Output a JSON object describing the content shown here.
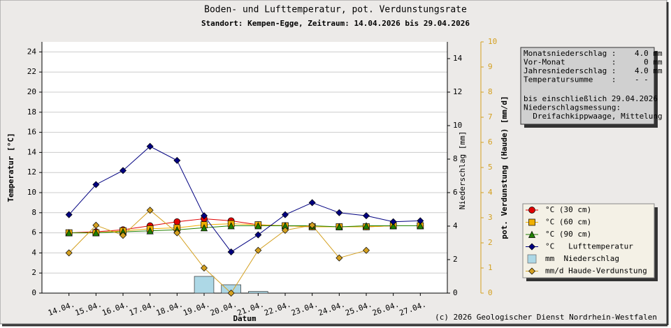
{
  "chart_data": {
    "type": "line",
    "title": "Boden- und Lufttemperatur, pot. Verdunstungsrate",
    "subtitle": "Standort: Kempen-Egge, Zeitraum: 14.04.2026 bis 29.04.2026",
    "x_label": "Datum",
    "y_label": "Temperatur [°C]",
    "y2_label": "Niederschlag [mm]",
    "y3_label": "pot. Verdunstung (Haude) [mm/d]",
    "categories": [
      "14.04.",
      "15.04.",
      "16.04.",
      "17.04.",
      "18.04.",
      "19.04.",
      "20.04.",
      "21.04.",
      "22.04.",
      "23.04.",
      "24.04.",
      "25.04.",
      "26.04.",
      "27.04."
    ],
    "ylim": [
      0,
      25
    ],
    "yticks": [
      0,
      2,
      4,
      6,
      8,
      10,
      12,
      14,
      16,
      18,
      20,
      22,
      24
    ],
    "y2lim": [
      0,
      15
    ],
    "y2ticks": [
      0,
      2,
      4,
      6,
      8,
      10,
      12,
      14
    ],
    "y3lim": [
      0,
      10
    ],
    "y3ticks": [
      0,
      1,
      2,
      3,
      4,
      5,
      6,
      7,
      8,
      9,
      10
    ],
    "y3color": "#d4a020",
    "grid": true,
    "series": [
      {
        "name": "°C (30 cm)",
        "type": "line",
        "marker": "circle",
        "color": "#e00000",
        "axis": "y",
        "values": [
          6.0,
          6.1,
          6.3,
          6.7,
          7.1,
          7.4,
          7.2,
          6.8,
          6.7,
          6.6,
          6.6,
          6.6,
          6.7,
          6.7
        ]
      },
      {
        "name": "°C (60 cm)",
        "type": "line",
        "marker": "square",
        "color": "#f0b000",
        "axis": "y",
        "values": [
          6.0,
          6.0,
          6.2,
          6.4,
          6.5,
          6.8,
          6.9,
          6.8,
          6.7,
          6.6,
          6.6,
          6.6,
          6.7,
          6.7
        ]
      },
      {
        "name": "°C (90 cm)",
        "type": "line",
        "marker": "triangle",
        "color": "#208000",
        "axis": "y",
        "values": [
          6.0,
          6.0,
          6.1,
          6.2,
          6.3,
          6.5,
          6.7,
          6.7,
          6.7,
          6.7,
          6.6,
          6.7,
          6.7,
          6.7
        ]
      },
      {
        "name": "°C   Lufttemperatur",
        "type": "line",
        "marker": "diamond",
        "color": "#000080",
        "axis": "y",
        "values": [
          7.8,
          10.8,
          12.2,
          14.6,
          13.2,
          7.7,
          4.1,
          5.8,
          7.8,
          9.0,
          8.0,
          7.7,
          7.1,
          7.2
        ]
      },
      {
        "name": "mm  Niederschlag",
        "type": "bar",
        "marker": "box",
        "color": "#add8e6",
        "axis": "y2",
        "values": [
          null,
          null,
          null,
          null,
          null,
          1.0,
          0.5,
          0.1,
          null,
          null,
          null,
          null,
          null,
          null
        ]
      },
      {
        "name": "mm/d Haude-Verdunstung",
        "type": "line",
        "marker": "diamond",
        "color": "#d4a020",
        "axis": "y3",
        "values": [
          1.6,
          2.7,
          2.3,
          3.3,
          2.4,
          1.0,
          0.0,
          1.7,
          2.5,
          2.7,
          1.4,
          1.7,
          null,
          null
        ]
      }
    ]
  },
  "info_box": [
    "Monatsniederschlag :    4.0 mm",
    "Vor-Monat          :      0 mm",
    "Jahresniederschlag :    4.0 mm",
    "Temperatursumme    :    - -",
    "bis einschließlich 29.04.2026",
    "Niederschlagsmessung:",
    "  Dreifachkippwaage, Mittelung"
  ],
  "footer": "(c) 2026 Geologischer Dienst Nordrhein-Westfalen"
}
